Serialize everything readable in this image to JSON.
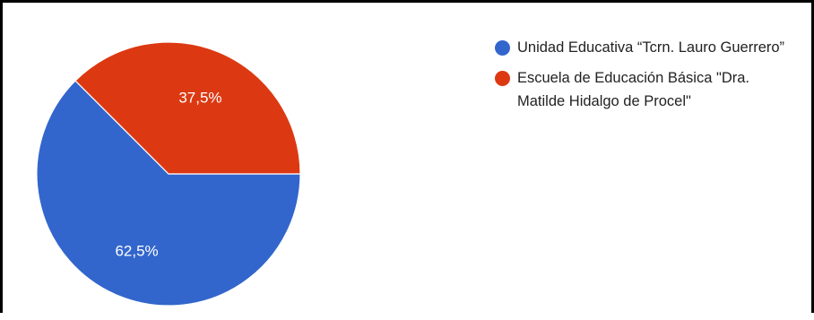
{
  "chart_data": {
    "type": "pie",
    "categories": [
      "Unidad Educativa “Tcrn. Lauro Guerrero”",
      "Escuela de Educación Básica \"Dra. Matilde Hidalgo de Procel\""
    ],
    "values": [
      62.5,
      37.5
    ],
    "slice_labels": [
      "62,5%",
      "37,5%"
    ],
    "colors": [
      "#3366cc",
      "#dc3912"
    ],
    "legend_position": "right",
    "title": ""
  }
}
